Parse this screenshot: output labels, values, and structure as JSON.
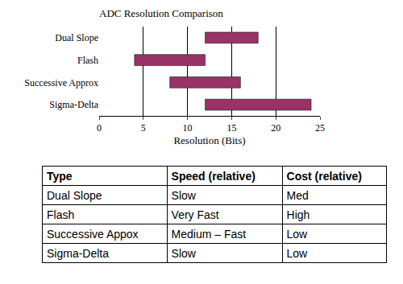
{
  "chart_data": {
    "type": "bar",
    "orientation": "horizontal",
    "title": "ADC Resolution Comparison",
    "x_label": "Resolution (Bits)",
    "categories": [
      "Dual Slope",
      "Flash",
      "Successive Approx",
      "Sigma-Delta"
    ],
    "values": [
      [
        12,
        18
      ],
      [
        4,
        12
      ],
      [
        8,
        16
      ],
      [
        12,
        24
      ]
    ],
    "color": "#993366",
    "xlim": [
      0,
      25
    ],
    "xticks": [
      0,
      5,
      10,
      15,
      20,
      25
    ],
    "grid": true
  },
  "table": {
    "header": [
      "Type",
      "Speed (relative)",
      "Cost (relative)"
    ],
    "rows": [
      [
        "Dual Slope",
        "Slow",
        "Med"
      ],
      [
        "Flash",
        "Very Fast",
        "High"
      ],
      [
        "Successive Appox",
        "Medium – Fast",
        "Low"
      ],
      [
        "Sigma-Delta",
        "Slow",
        "Low"
      ]
    ]
  }
}
